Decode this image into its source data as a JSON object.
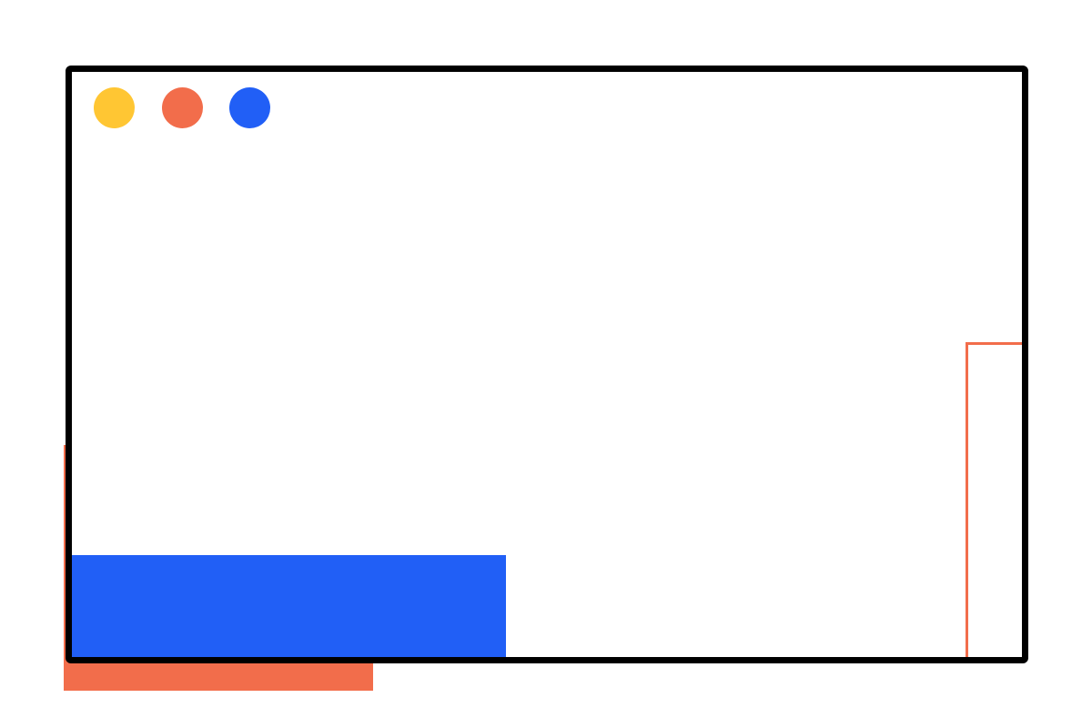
{
  "colors": {
    "frame": "#000000",
    "yellow": "#FFC633",
    "orange": "#F26D4B",
    "blue": "#215FF6"
  },
  "window": {
    "controls": [
      {
        "name": "yellow-dot",
        "color": "#FFC633"
      },
      {
        "name": "orange-dot",
        "color": "#F26D4B"
      },
      {
        "name": "blue-dot",
        "color": "#215FF6"
      }
    ]
  }
}
